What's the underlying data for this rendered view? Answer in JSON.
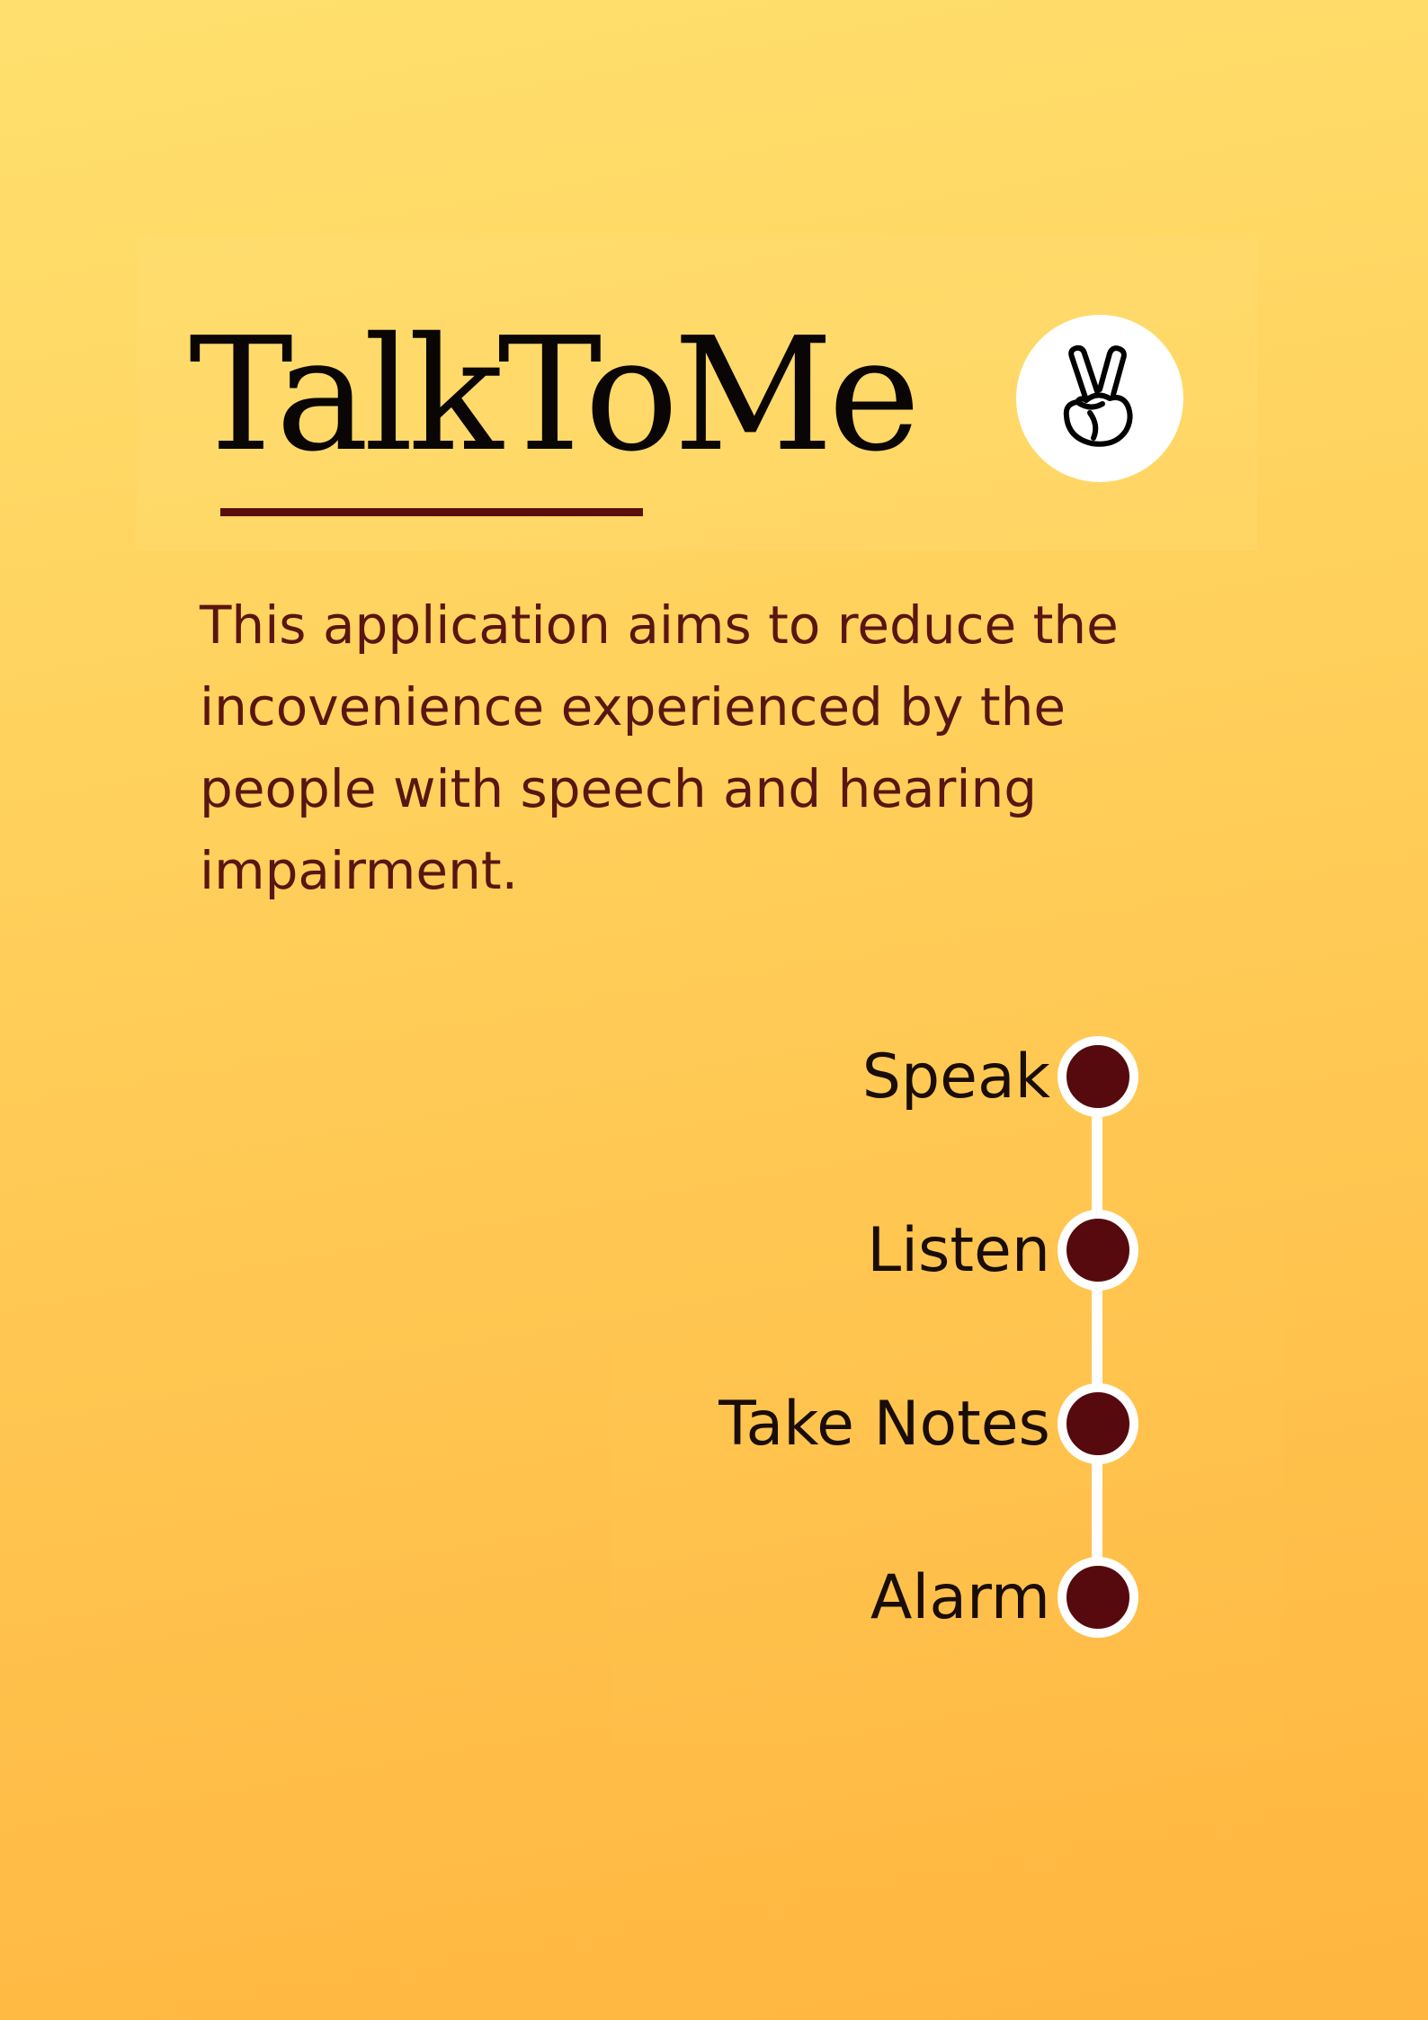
{
  "app": {
    "title": "TalkToMe",
    "logo_icon": "peace-hand-icon",
    "description": "This application aims to reduce the incovenience experienced by the people with speech and hearing impairment."
  },
  "features": [
    {
      "label": "Speak"
    },
    {
      "label": "Listen"
    },
    {
      "label": "Take Notes"
    },
    {
      "label": "Alarm"
    }
  ],
  "colors": {
    "background_top": "#ffe06e",
    "background_bottom": "#ffb53f",
    "accent": "#560a0d",
    "title_text": "#0a0605",
    "description_text": "#5a1512",
    "dot_ring": "#ffffff"
  }
}
